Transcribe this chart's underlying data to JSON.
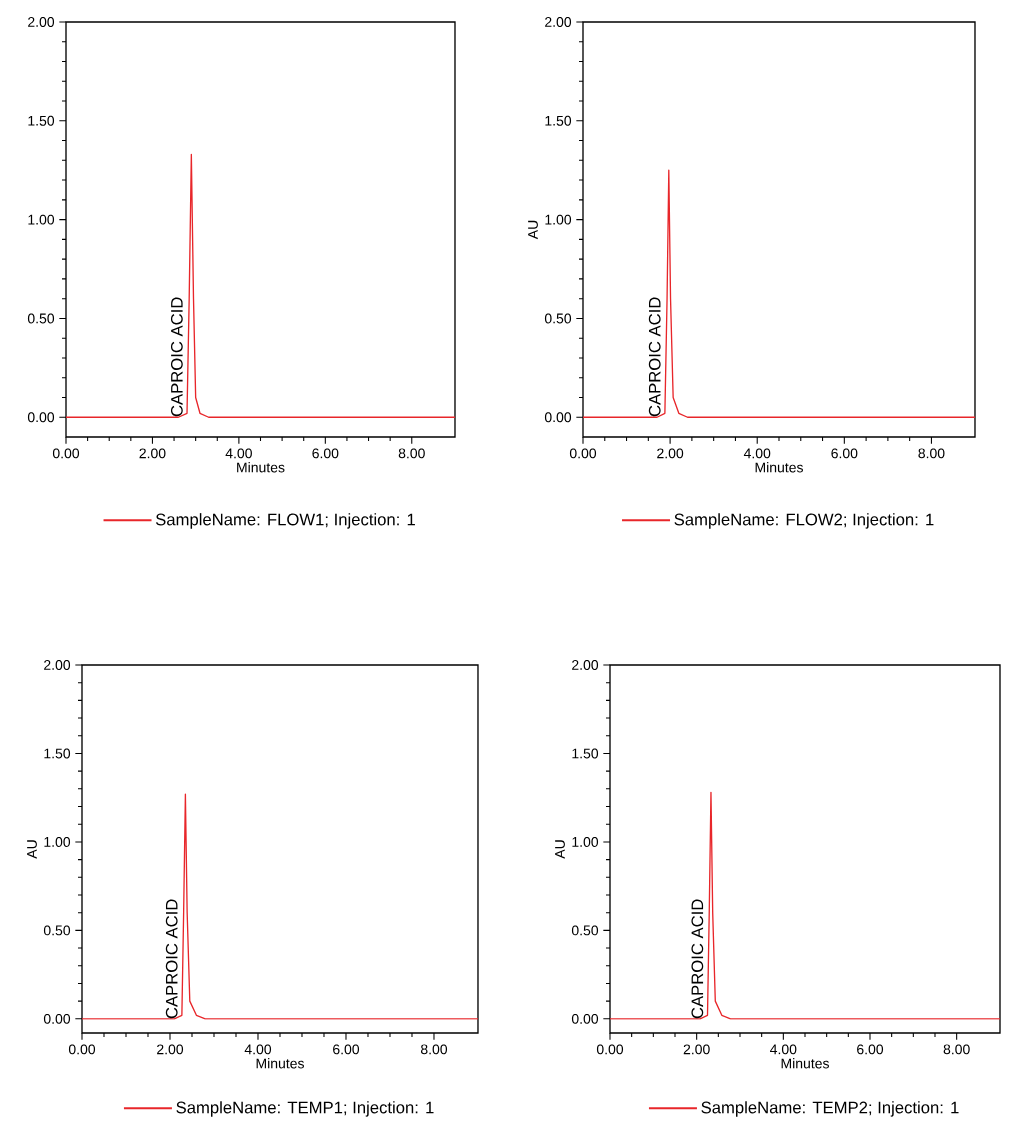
{
  "chart_data": [
    {
      "type": "line",
      "xlabel": "Minutes",
      "x": [
        0,
        2.6,
        2.8,
        2.85,
        2.9,
        2.95,
        3.0,
        3.1,
        3.3,
        9
      ],
      "series": [
        {
          "name": "SampleName: FLOW1; Injection: 1",
          "color": "#e8262a",
          "values": [
            0,
            0,
            0.02,
            0.6,
            1.33,
            0.6,
            0.1,
            0.02,
            0,
            0
          ]
        }
      ],
      "xlim": [
        0,
        9
      ],
      "ylim": [
        -0.1,
        2
      ],
      "xticks": [
        {
          "value": 0,
          "label": "0.00"
        },
        {
          "value": 2,
          "label": "2.00"
        },
        {
          "value": 4,
          "label": "4.00"
        },
        {
          "value": 6,
          "label": "6.00"
        },
        {
          "value": 8,
          "label": "8.00"
        }
      ],
      "yticks": [
        {
          "value": 0,
          "label": "0.00"
        },
        {
          "value": 0.5,
          "label": "0.50"
        },
        {
          "value": 1,
          "label": "1.00"
        },
        {
          "value": 1.5,
          "label": "1.50"
        },
        {
          "value": 2,
          "label": "2.00"
        }
      ],
      "annotations": [
        {
          "text": "CAPROIC ACID",
          "x": 2.8,
          "y": 0.02
        }
      ],
      "legend": "bottom",
      "marker": "none",
      "line_style": "solid"
    },
    {
      "type": "line",
      "xlabel": "Minutes",
      "ylabel": "AU",
      "x": [
        0,
        1.7,
        1.88,
        1.93,
        1.97,
        2.01,
        2.07,
        2.2,
        2.4,
        9
      ],
      "series": [
        {
          "name": "SampleName: FLOW2; Injection: 1",
          "color": "#e8262a",
          "values": [
            0,
            0,
            0.02,
            0.6,
            1.25,
            0.6,
            0.1,
            0.02,
            0,
            0
          ]
        }
      ],
      "xlim": [
        0,
        9
      ],
      "ylim": [
        -0.1,
        2
      ],
      "xticks": [
        {
          "value": 0,
          "label": "0.00"
        },
        {
          "value": 2,
          "label": "2.00"
        },
        {
          "value": 4,
          "label": "4.00"
        },
        {
          "value": 6,
          "label": "6.00"
        },
        {
          "value": 8,
          "label": "8.00"
        }
      ],
      "yticks": [
        {
          "value": 0,
          "label": "0.00"
        },
        {
          "value": 0.5,
          "label": "0.50"
        },
        {
          "value": 1,
          "label": "1.00"
        },
        {
          "value": 1.5,
          "label": "1.50"
        },
        {
          "value": 2,
          "label": "2.00"
        }
      ],
      "annotations": [
        {
          "text": "CAPROIC ACID",
          "x": 1.88,
          "y": 0.02
        }
      ],
      "legend": "bottom",
      "marker": "none",
      "line_style": "solid"
    },
    {
      "type": "line",
      "xlabel": "Minutes",
      "ylabel": "AU",
      "x": [
        0,
        2.1,
        2.27,
        2.31,
        2.35,
        2.39,
        2.45,
        2.6,
        2.8,
        9
      ],
      "series": [
        {
          "name": "SampleName: TEMP1; Injection: 1",
          "color": "#e8262a",
          "values": [
            0,
            0,
            0.02,
            0.6,
            1.27,
            0.6,
            0.1,
            0.02,
            0,
            0
          ]
        }
      ],
      "xlim": [
        0,
        9
      ],
      "ylim": [
        -0.08,
        2
      ],
      "xticks": [
        {
          "value": 0,
          "label": "0.00"
        },
        {
          "value": 2,
          "label": "2.00"
        },
        {
          "value": 4,
          "label": "4.00"
        },
        {
          "value": 6,
          "label": "6.00"
        },
        {
          "value": 8,
          "label": "8.00"
        }
      ],
      "yticks": [
        {
          "value": 0,
          "label": "0.00"
        },
        {
          "value": 0.5,
          "label": "0.50"
        },
        {
          "value": 1,
          "label": "1.00"
        },
        {
          "value": 1.5,
          "label": "1.50"
        },
        {
          "value": 2,
          "label": "2.00"
        }
      ],
      "annotations": [
        {
          "text": "CAPROIC ACID",
          "x": 2.27,
          "y": 0.02
        }
      ],
      "legend": "bottom",
      "marker": "none",
      "line_style": "solid"
    },
    {
      "type": "line",
      "xlabel": "Minutes",
      "ylabel": "AU",
      "x": [
        0,
        2.08,
        2.25,
        2.29,
        2.33,
        2.37,
        2.43,
        2.58,
        2.78,
        9
      ],
      "series": [
        {
          "name": "SampleName: TEMP2; Injection: 1",
          "color": "#e8262a",
          "values": [
            0,
            0,
            0.02,
            0.6,
            1.28,
            0.6,
            0.1,
            0.02,
            0,
            0
          ]
        }
      ],
      "xlim": [
        0,
        9
      ],
      "ylim": [
        -0.08,
        2
      ],
      "xticks": [
        {
          "value": 0,
          "label": "0.00"
        },
        {
          "value": 2,
          "label": "2.00"
        },
        {
          "value": 4,
          "label": "4.00"
        },
        {
          "value": 6,
          "label": "6.00"
        },
        {
          "value": 8,
          "label": "8.00"
        }
      ],
      "yticks": [
        {
          "value": 0,
          "label": "0.00"
        },
        {
          "value": 0.5,
          "label": "0.50"
        },
        {
          "value": 1,
          "label": "1.00"
        },
        {
          "value": 1.5,
          "label": "1.50"
        },
        {
          "value": 2,
          "label": "2.00"
        }
      ],
      "annotations": [
        {
          "text": "CAPROIC ACID",
          "x": 2.25,
          "y": 0.02
        }
      ],
      "legend": "bottom",
      "marker": "none",
      "line_style": "solid"
    }
  ]
}
